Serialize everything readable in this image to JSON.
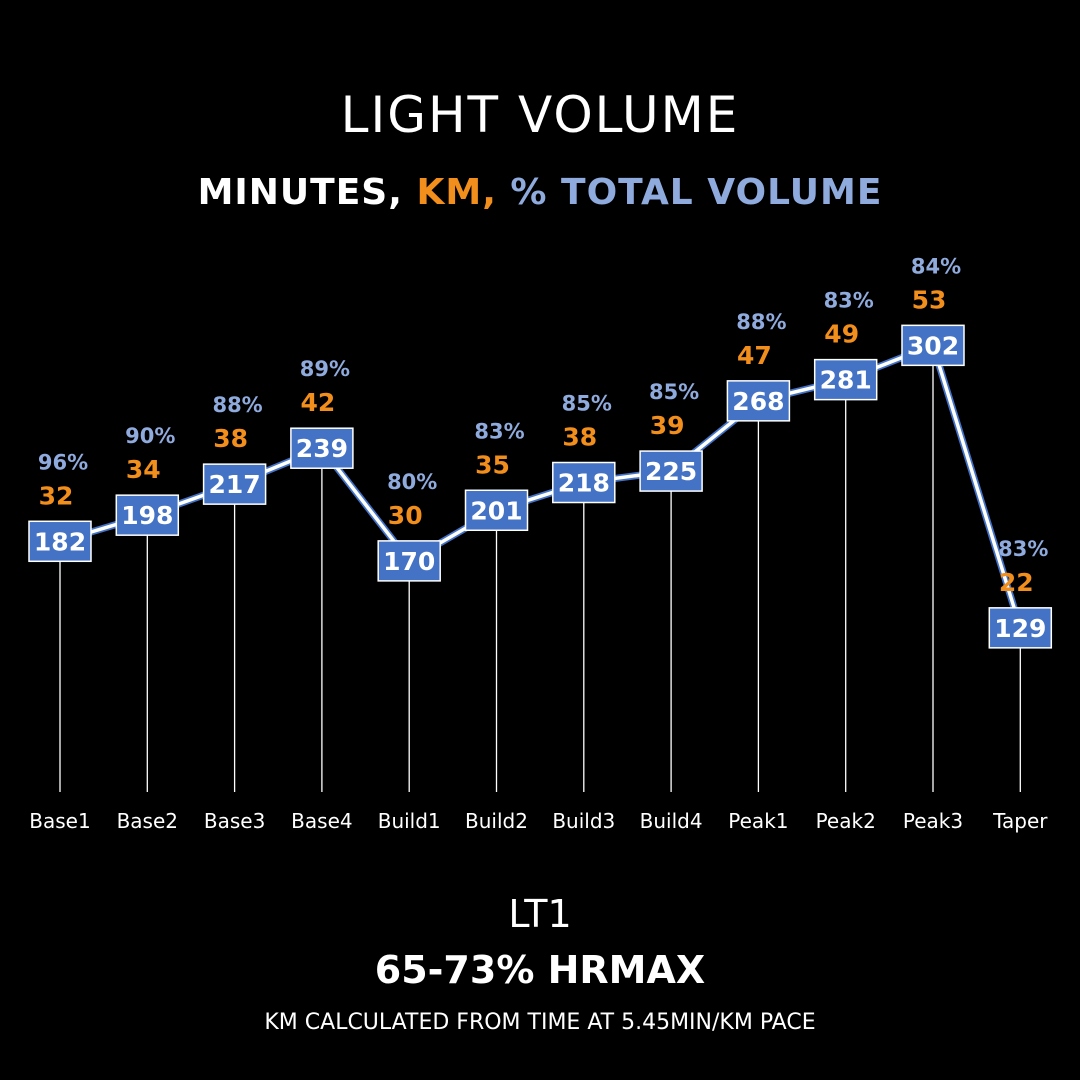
{
  "colors": {
    "background": "#000000",
    "minutes": "#4472C4",
    "km": "#F28E1C",
    "percent": "#8FAADC",
    "text": "#FFFFFF"
  },
  "header": {
    "title": "LIGHT VOLUME",
    "subtitle_minutes": "MINUTES,",
    "subtitle_km": "KM,",
    "subtitle_percent": "% TOTAL VOLUME"
  },
  "footer": {
    "zone": "LT1",
    "hr_range": "65-73% HRMAX",
    "note": "KM CALCULATED FROM TIME AT 5.45MIN/KM PACE"
  },
  "chart_data": {
    "type": "line",
    "title": "LIGHT VOLUME",
    "categories": [
      "Base1",
      "Base2",
      "Base3",
      "Base4",
      "Build1",
      "Build2",
      "Build3",
      "Build4",
      "Peak1",
      "Peak2",
      "Peak3",
      "Taper"
    ],
    "series": [
      {
        "name": "MINUTES",
        "values": [
          182,
          198,
          217,
          239,
          170,
          201,
          218,
          225,
          268,
          281,
          302,
          129
        ]
      },
      {
        "name": "KM",
        "values": [
          32,
          34,
          38,
          42,
          30,
          35,
          38,
          39,
          47,
          49,
          53,
          22
        ]
      },
      {
        "name": "% TOTAL VOLUME",
        "values": [
          "96%",
          "90%",
          "88%",
          "89%",
          "80%",
          "83%",
          "85%",
          "85%",
          "88%",
          "83%",
          "84%",
          "83%"
        ]
      }
    ]
  }
}
